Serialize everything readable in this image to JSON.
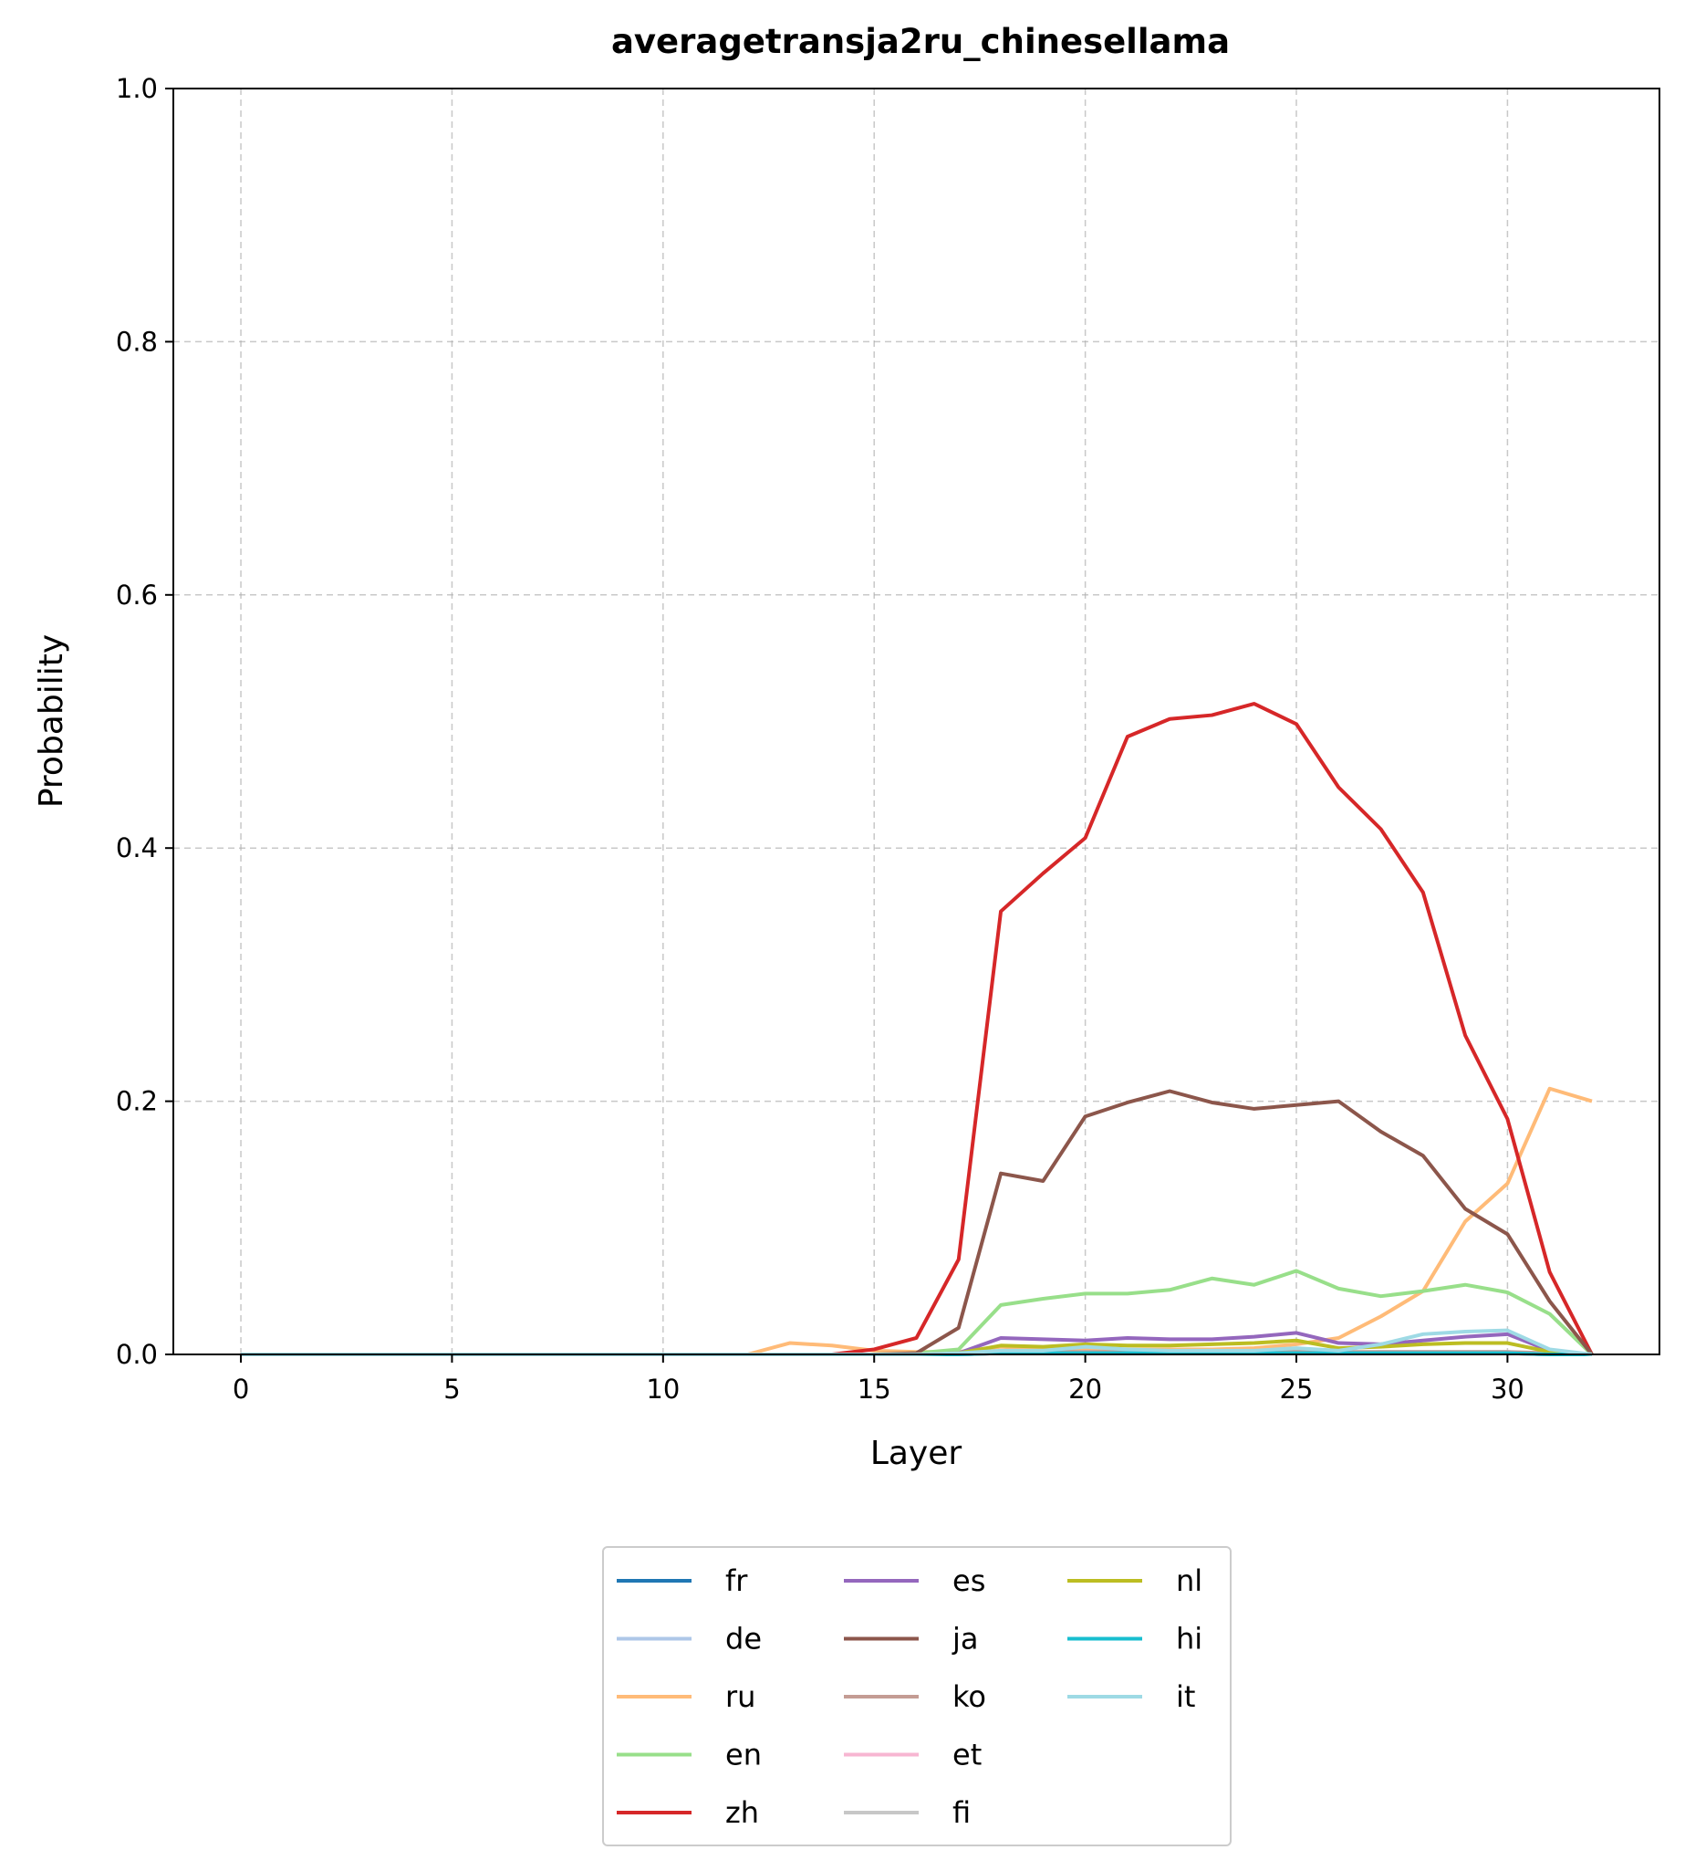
{
  "chart_data": {
    "type": "line",
    "title": "averagetransja2ru_chinesellama",
    "xlabel": "Layer",
    "ylabel": "Probability",
    "xlim": [
      -1.6,
      33.6
    ],
    "ylim": [
      0.0,
      1.0
    ],
    "xticks": [
      0,
      5,
      10,
      15,
      20,
      25,
      30
    ],
    "xtick_labels": [
      "0",
      "5",
      "10",
      "15",
      "20",
      "25",
      "30"
    ],
    "yticks": [
      0.0,
      0.2,
      0.4,
      0.6,
      0.8,
      1.0
    ],
    "ytick_labels": [
      "0.0",
      "0.2",
      "0.4",
      "0.6",
      "0.8",
      "1.0"
    ],
    "grid": true,
    "legend_placement": "bottom-center, below axes, 3 columns",
    "x": [
      0,
      1,
      2,
      3,
      4,
      5,
      6,
      7,
      8,
      9,
      10,
      11,
      12,
      13,
      14,
      15,
      16,
      17,
      18,
      19,
      20,
      21,
      22,
      23,
      24,
      25,
      26,
      27,
      28,
      29,
      30,
      31,
      32
    ],
    "series": [
      {
        "name": "fr",
        "color": "#1f77b4",
        "values": [
          0,
          0,
          0,
          0,
          0,
          0,
          0,
          0,
          0,
          0,
          0,
          0,
          0,
          0,
          0,
          0,
          0,
          0,
          0.001,
          0.001,
          0.001,
          0.001,
          0.001,
          0.001,
          0.001,
          0.002,
          0.001,
          0.001,
          0.001,
          0.001,
          0.001,
          0,
          0
        ]
      },
      {
        "name": "de",
        "color": "#aec7e8",
        "values": [
          0,
          0,
          0,
          0,
          0,
          0,
          0,
          0,
          0,
          0,
          0,
          0,
          0,
          0,
          0,
          0,
          0,
          0,
          0.001,
          0.001,
          0.002,
          0.002,
          0.001,
          0.001,
          0.002,
          0.003,
          0.001,
          0.002,
          0.002,
          0.002,
          0.002,
          0,
          0
        ]
      },
      {
        "name": "ru",
        "color": "#ffbb78",
        "values": [
          0,
          0,
          0,
          0,
          0,
          0,
          0,
          0,
          0,
          0,
          0,
          0,
          0,
          0.009,
          0.007,
          0.003,
          0.002,
          0.002,
          0.006,
          0.004,
          0.005,
          0.004,
          0.004,
          0.004,
          0.005,
          0.008,
          0.013,
          0.03,
          0.05,
          0.105,
          0.135,
          0.21,
          0.2
        ]
      },
      {
        "name": "en",
        "color": "#98df8a",
        "values": [
          0,
          0,
          0,
          0,
          0,
          0,
          0,
          0,
          0,
          0,
          0,
          0,
          0,
          0,
          0,
          0,
          0.001,
          0.004,
          0.039,
          0.044,
          0.048,
          0.048,
          0.051,
          0.06,
          0.055,
          0.066,
          0.052,
          0.046,
          0.05,
          0.055,
          0.049,
          0.032,
          0
        ]
      },
      {
        "name": "zh",
        "color": "#d62728",
        "values": [
          0,
          0,
          0,
          0,
          0,
          0,
          0,
          0,
          0,
          0,
          0,
          0,
          0,
          0,
          0,
          0.004,
          0.013,
          0.075,
          0.35,
          0.38,
          0.408,
          0.488,
          0.502,
          0.505,
          0.514,
          0.498,
          0.448,
          0.415,
          0.365,
          0.252,
          0.186,
          0.065,
          0
        ]
      },
      {
        "name": "es",
        "color": "#9467bd",
        "values": [
          0,
          0,
          0,
          0,
          0,
          0,
          0,
          0,
          0,
          0,
          0,
          0,
          0,
          0,
          0,
          0,
          0,
          0.001,
          0.013,
          0.012,
          0.011,
          0.013,
          0.012,
          0.012,
          0.014,
          0.017,
          0.009,
          0.008,
          0.011,
          0.014,
          0.016,
          0.003,
          0
        ]
      },
      {
        "name": "ja",
        "color": "#8c564b",
        "values": [
          0,
          0,
          0,
          0,
          0,
          0,
          0,
          0,
          0,
          0,
          0,
          0,
          0,
          0,
          0,
          0,
          0.001,
          0.021,
          0.143,
          0.137,
          0.188,
          0.199,
          0.208,
          0.199,
          0.194,
          0.197,
          0.2,
          0.176,
          0.157,
          0.115,
          0.095,
          0.042,
          0
        ]
      },
      {
        "name": "ko",
        "color": "#c49c94",
        "values": [
          0,
          0,
          0,
          0,
          0,
          0,
          0,
          0,
          0,
          0,
          0,
          0,
          0,
          0,
          0,
          0,
          0,
          0,
          0.002,
          0.002,
          0.002,
          0.002,
          0.002,
          0.002,
          0.002,
          0.003,
          0.002,
          0.002,
          0.002,
          0.002,
          0.002,
          0.001,
          0
        ]
      },
      {
        "name": "et",
        "color": "#f7b6d2",
        "values": [
          0,
          0,
          0,
          0,
          0,
          0,
          0,
          0,
          0,
          0,
          0,
          0,
          0,
          0,
          0,
          0,
          0,
          0,
          0.001,
          0.001,
          0.001,
          0.001,
          0.001,
          0.001,
          0.001,
          0.001,
          0.001,
          0.001,
          0.001,
          0.001,
          0.001,
          0,
          0
        ]
      },
      {
        "name": "fi",
        "color": "#c7c7c7",
        "values": [
          0,
          0,
          0,
          0,
          0,
          0,
          0,
          0,
          0,
          0,
          0,
          0,
          0,
          0,
          0,
          0,
          0,
          0,
          0.001,
          0.001,
          0.001,
          0.001,
          0.001,
          0.001,
          0.001,
          0.001,
          0.001,
          0.001,
          0.001,
          0.001,
          0.001,
          0,
          0
        ]
      },
      {
        "name": "nl",
        "color": "#bcbd22",
        "values": [
          0,
          0,
          0,
          0,
          0,
          0,
          0,
          0,
          0,
          0,
          0,
          0,
          0,
          0,
          0,
          0,
          0,
          0.001,
          0.007,
          0.006,
          0.008,
          0.007,
          0.007,
          0.008,
          0.009,
          0.011,
          0.005,
          0.006,
          0.008,
          0.009,
          0.009,
          0.002,
          0
        ]
      },
      {
        "name": "hi",
        "color": "#17becf",
        "values": [
          0,
          0,
          0,
          0,
          0,
          0,
          0,
          0,
          0,
          0,
          0,
          0,
          0,
          0,
          0,
          0,
          0,
          0,
          0.001,
          0.001,
          0.001,
          0.001,
          0.001,
          0.001,
          0.001,
          0.001,
          0.001,
          0.001,
          0.001,
          0.001,
          0.001,
          0,
          0
        ]
      },
      {
        "name": "it",
        "color": "#9edae5",
        "values": [
          0,
          0,
          0,
          0,
          0,
          0,
          0,
          0,
          0,
          0,
          0,
          0,
          0,
          0,
          0,
          0,
          0,
          0.001,
          0.003,
          0.003,
          0.006,
          0.004,
          0.003,
          0.003,
          0.003,
          0.005,
          0.003,
          0.008,
          0.016,
          0.018,
          0.019,
          0.004,
          0
        ]
      }
    ]
  }
}
